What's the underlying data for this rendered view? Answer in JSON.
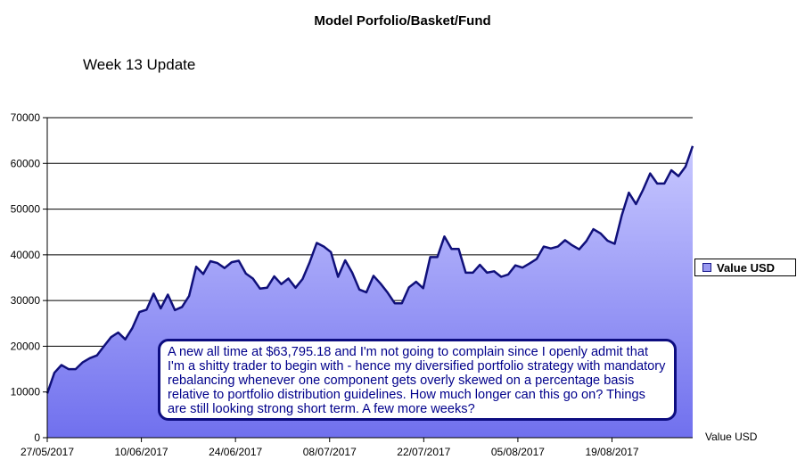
{
  "header": {
    "title": "Model Porfolio/Basket/Fund",
    "subtitle": "Week 13 Update"
  },
  "annotation": "A new all time at $63,795.18 and I'm not going to complain since I openly admit that I'm a shitty trader to begin with - hence my diversified portfolio strategy with mandatory rebalancing whenever one component gets overly skewed on a percentage basis relative to portfolio distribution guidelines. How much longer can this go on? Things are still looking strong short term. A few more weeks?",
  "colors": {
    "fill_top": "#c8c8ff",
    "fill_bottom": "#7070ee",
    "line": "#10107a",
    "note_border": "#0d0d80",
    "note_text": "#00008b"
  },
  "chart_data": {
    "type": "area",
    "title": "Model Porfolio/Basket/Fund",
    "subtitle": "Week 13 Update",
    "x_ticks": [
      "27/05/2017",
      "10/06/2017",
      "24/06/2017",
      "08/07/2017",
      "22/07/2017",
      "05/08/2017",
      "19/08/2017"
    ],
    "ylim": [
      0,
      70000
    ],
    "y_ticks": [
      0,
      10000,
      20000,
      30000,
      40000,
      50000,
      60000,
      70000
    ],
    "grid": true,
    "legend": "right",
    "series": [
      {
        "name": "Value USD",
        "start": "27/05/2017",
        "end": "31/08/2017",
        "values": [
          9700,
          14200,
          15900,
          15000,
          15000,
          16500,
          17400,
          18000,
          20000,
          22000,
          23000,
          21500,
          24000,
          27500,
          28000,
          31500,
          28300,
          31300,
          27900,
          28600,
          31000,
          37400,
          35800,
          38600,
          38200,
          37100,
          38400,
          38700,
          35900,
          34800,
          32600,
          32800,
          35300,
          33600,
          34800,
          32800,
          34700,
          38400,
          42600,
          41800,
          40600,
          35200,
          38800,
          36100,
          32400,
          31800,
          35400,
          33700,
          31700,
          29400,
          29400,
          32900,
          34100,
          32700,
          39500,
          39500,
          44000,
          41300,
          41300,
          36100,
          36100,
          37800,
          36100,
          36400,
          35200,
          35700,
          37700,
          37200,
          38100,
          39100,
          41800,
          41400,
          41800,
          43200,
          42100,
          41200,
          43000,
          45600,
          44700,
          43100,
          42400,
          48600,
          53600,
          51100,
          54200,
          57800,
          55600,
          55600,
          58500,
          57200,
          59300,
          63800
        ]
      }
    ]
  }
}
